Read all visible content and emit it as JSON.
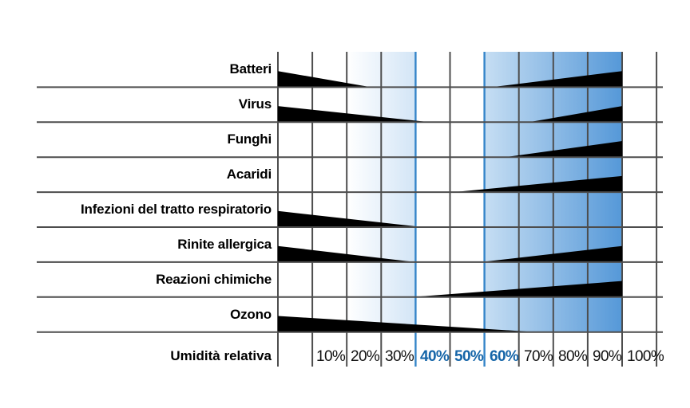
{
  "chart_data": {
    "type": "wedge-range-chart",
    "description": "Effects of relative humidity (Sterling-style chart, Italian labels). Black wedges show intensity of each effect across the humidity scale.",
    "axis": {
      "label": "Umidità relativa",
      "unit": "%",
      "range": [
        0,
        110
      ],
      "ticks": [
        "10%",
        "20%",
        "30%",
        "40%",
        "50%",
        "60%",
        "70%",
        "80%",
        "90%",
        "100%"
      ],
      "highlighted_ticks": [
        "40%",
        "50%",
        "60%"
      ]
    },
    "optimal_zone": {
      "start": 40,
      "end": 60
    },
    "shaded_zones": [
      {
        "start": 20,
        "end": 40,
        "style": "light-gradient"
      },
      {
        "start": 60,
        "end": 100,
        "style": "strong-gradient"
      }
    ],
    "rows": [
      {
        "label": "Batteri",
        "low": {
          "start": 0,
          "end": 27
        },
        "high": {
          "start": 62,
          "end": 100
        }
      },
      {
        "label": "Virus",
        "low": {
          "start": 0,
          "end": 44
        },
        "high": {
          "start": 73,
          "end": 100
        }
      },
      {
        "label": "Funghi",
        "high": {
          "start": 66,
          "end": 100
        }
      },
      {
        "label": "Acaridi",
        "high": {
          "start": 51,
          "end": 100
        }
      },
      {
        "label": "Infezioni del tratto respiratorio",
        "low": {
          "start": 0,
          "end": 42
        }
      },
      {
        "label": "Rinite allergica",
        "low": {
          "start": 0,
          "end": 40
        },
        "high": {
          "start": 59,
          "end": 100
        }
      },
      {
        "label": "Reazioni chimiche",
        "high": {
          "start": 39,
          "end": 100
        }
      },
      {
        "label": "Ozono",
        "low": {
          "start": 0,
          "end": 75
        }
      }
    ],
    "colors": {
      "wedge": "#000000",
      "grid": "#4d4d4d",
      "optimal_line": "#3585c9",
      "tick_highlight": "#1565a8",
      "shade_light_to": "#d3e5f6",
      "shade_strong_from": "#c6def3",
      "shade_strong_to": "#5598d8",
      "text": "#000000"
    }
  }
}
